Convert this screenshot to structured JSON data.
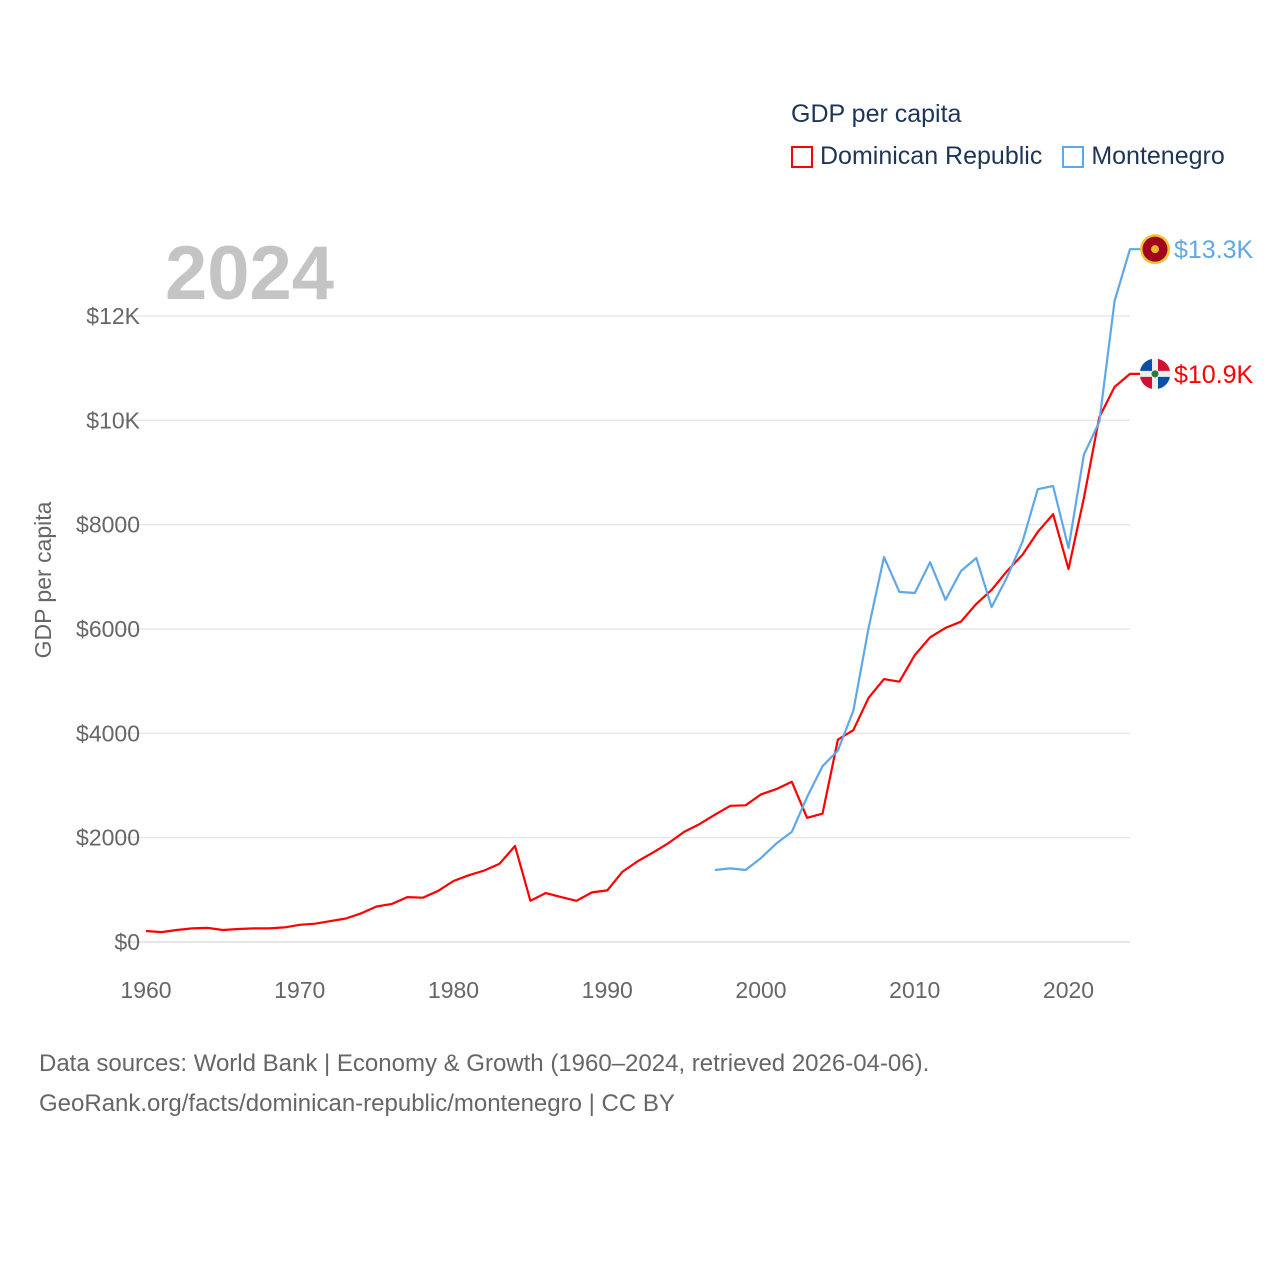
{
  "chart_data": {
    "type": "line",
    "title": "GDP per capita",
    "ylabel": "GDP per capita",
    "xlabel": "",
    "year_overlay": "2024",
    "xlim": [
      1960,
      2024
    ],
    "ylim": [
      0,
      13300
    ],
    "x_ticks": [
      1960,
      1970,
      1980,
      1990,
      2000,
      2010,
      2020
    ],
    "y_ticks": [
      {
        "value": 0,
        "label": "$0"
      },
      {
        "value": 2000,
        "label": "$2000"
      },
      {
        "value": 4000,
        "label": "$4000"
      },
      {
        "value": 6000,
        "label": "$6000"
      },
      {
        "value": 8000,
        "label": "$8000"
      },
      {
        "value": 10000,
        "label": "$10K"
      },
      {
        "value": 12000,
        "label": "$12K"
      }
    ],
    "grid": true,
    "legend_placement": "top-right",
    "series": [
      {
        "name": "Dominican Republic",
        "color": "#ff0000",
        "end_label": "$10.9K",
        "flag": "dominican-republic-flag",
        "x_start": 1960,
        "values": [
          210,
          190,
          230,
          260,
          270,
          230,
          250,
          260,
          260,
          280,
          330,
          350,
          400,
          450,
          550,
          680,
          730,
          860,
          850,
          980,
          1170,
          1280,
          1370,
          1500,
          1840,
          790,
          940,
          860,
          790,
          950,
          990,
          1350,
          1550,
          1720,
          1900,
          2110,
          2260,
          2440,
          2610,
          2620,
          2830,
          2930,
          3070,
          2380,
          2460,
          3880,
          4060,
          4680,
          5040,
          4990,
          5500,
          5840,
          6020,
          6140,
          6480,
          6750,
          7110,
          7420,
          7860,
          8200,
          7150,
          8510,
          10060,
          10640,
          10890
        ]
      },
      {
        "name": "Montenegro",
        "color": "#5fa8e8",
        "end_label": "$13.3K",
        "flag": "montenegro-flag",
        "x_start": 1997,
        "values": [
          1380,
          1410,
          1380,
          1610,
          1890,
          2110,
          2780,
          3370,
          3670,
          4430,
          6020,
          7380,
          6710,
          6690,
          7280,
          6560,
          7110,
          7360,
          6420,
          6990,
          7670,
          8680,
          8740,
          7550,
          9340,
          9970,
          12290,
          13280
        ]
      }
    ]
  },
  "footer": {
    "line1": "Data sources: World Bank | Economy & Growth (1960–2024, retrieved 2026-04-06).",
    "line2": "GeoRank.org/facts/dominican-republic/montenegro | CC BY"
  }
}
